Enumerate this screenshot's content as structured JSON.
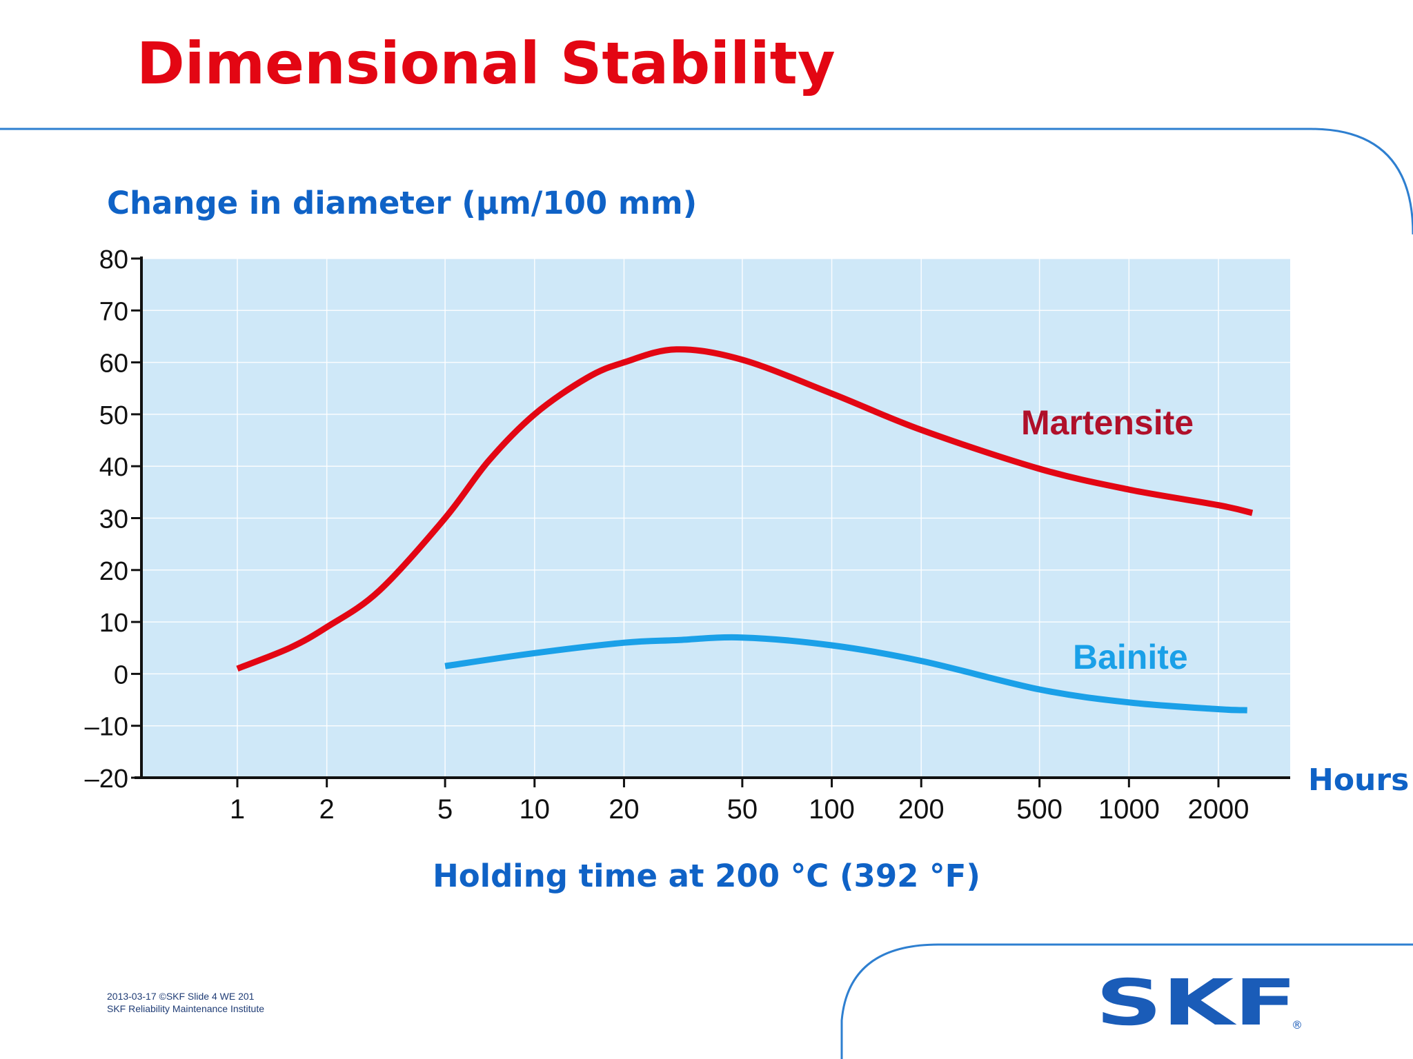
{
  "slide": {
    "title": "Dimensional Stability"
  },
  "footer": {
    "line1": "2013-03-17  ©SKF  Slide 4  WE 201",
    "line2": "SKF Reliability Maintenance Institute"
  },
  "logo": {
    "text": "SKF",
    "registered": "®",
    "color": "#1a5cb8"
  },
  "colors": {
    "title": "#e30613",
    "label_blue": "#0f62c6",
    "plot_bg": "#cfe8f8",
    "martensite": "#e30613",
    "bainite": "#1aa0e8",
    "martensite_label": "#b0102a",
    "decor_line": "#2e7fd0"
  },
  "chart_data": {
    "type": "line",
    "title": "",
    "ylabel": "Change in diameter (µm/100 mm)",
    "xlabel": "Holding time at 200 °C (392 °F)",
    "x_unit_label": "Hours",
    "x_scale": "log",
    "xlim": [
      0.6,
      3000
    ],
    "ylim": [
      -20,
      80
    ],
    "x_ticks": [
      1,
      2,
      5,
      10,
      20,
      50,
      100,
      200,
      500,
      1000,
      2000
    ],
    "x_tick_labels": [
      "1",
      "2",
      "5",
      "10",
      "20",
      "50",
      "100",
      "200",
      "500",
      "1000",
      "2000"
    ],
    "y_ticks": [
      -20,
      -10,
      0,
      10,
      20,
      30,
      40,
      50,
      60,
      70,
      80
    ],
    "y_tick_labels": [
      "–20",
      "–10",
      "0",
      "10",
      "20",
      "30",
      "40",
      "50",
      "60",
      "70",
      "80"
    ],
    "grid": true,
    "series": [
      {
        "name": "Martensite",
        "x": [
          1,
          1.5,
          2,
          3,
          5,
          7,
          10,
          15,
          20,
          30,
          50,
          100,
          200,
          500,
          1000,
          2000,
          2600
        ],
        "y": [
          1,
          5,
          9,
          16,
          30,
          41,
          50,
          57,
          60,
          62.5,
          60.5,
          54,
          47,
          39.5,
          35.5,
          32.5,
          31
        ]
      },
      {
        "name": "Bainite",
        "x": [
          5,
          10,
          20,
          30,
          50,
          100,
          200,
          500,
          1000,
          2000,
          2500
        ],
        "y": [
          1.5,
          4,
          6,
          6.5,
          7,
          5.5,
          2.5,
          -3,
          -5.5,
          -6.8,
          -7
        ]
      }
    ]
  }
}
